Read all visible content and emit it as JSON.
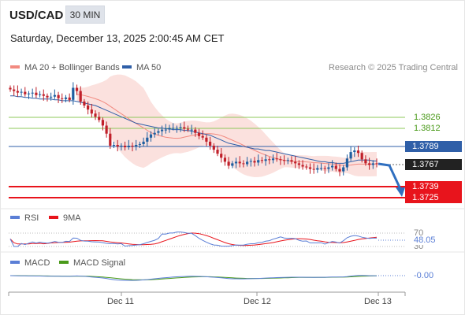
{
  "header": {
    "symbol": "USD/CAD",
    "timeframe": "30 MIN",
    "timestamp": "Saturday, December 13, 2025 2:00:45 AM CET"
  },
  "legend_main": [
    {
      "label": "MA 20 + Bollinger Bands",
      "color": "#f28a80"
    },
    {
      "label": "MA 50",
      "color": "#2f5fa8"
    }
  ],
  "copyright": "Research © 2025 Trading Central",
  "levels": {
    "r2": "1.3826",
    "r1": "1.3812",
    "pivot": "1.3789",
    "last": "1.3767",
    "s1": "1.3739",
    "s2": "1.3725"
  },
  "colors": {
    "resistance": "#8cc85a",
    "pivot": "#2f5fa8",
    "support": "#e8141c",
    "up_candle": "#1f5fa0",
    "down_candle": "#c0202a",
    "bollinger_fill": "#fbe1de",
    "arrow": "#2f6fc0"
  },
  "rsi": {
    "legend": [
      {
        "label": "RSI",
        "color": "#5b7fd6"
      },
      {
        "label": "9MA",
        "color": "#e8141c"
      }
    ],
    "levels": [
      "70",
      "30"
    ],
    "value": "48.05"
  },
  "macd": {
    "legend": [
      {
        "label": "MACD",
        "color": "#5b7fd6"
      },
      {
        "label": "MACD Signal",
        "color": "#4a9a1a"
      }
    ],
    "value": "-0.00"
  },
  "x_axis": [
    "Dec 11",
    "Dec 12",
    "Dec 13"
  ],
  "chart_data": {
    "type": "candlestick",
    "symbol": "USD/CAD",
    "timeframe": "30 MIN",
    "y_range_approx": [
      1.3715,
      1.387
    ],
    "close_series_approx": [
      1.386,
      1.3858,
      1.3856,
      1.3857,
      1.3854,
      1.3855,
      1.3856,
      1.3853,
      1.3854,
      1.3852,
      1.385,
      1.3851,
      1.3853,
      1.3849,
      1.3848,
      1.385,
      1.3847,
      1.3862,
      1.3858,
      1.3845,
      1.384,
      1.3835,
      1.383,
      1.3826,
      1.3822,
      1.3815,
      1.3805,
      1.379,
      1.3791,
      1.3789,
      1.379,
      1.3788,
      1.379,
      1.3789,
      1.3791,
      1.3792,
      1.3795,
      1.38,
      1.3804,
      1.3806,
      1.3808,
      1.381,
      1.381,
      1.3812,
      1.3812,
      1.3812,
      1.3813,
      1.3811,
      1.381,
      1.381,
      1.3806,
      1.3802,
      1.38,
      1.3795,
      1.379,
      1.3785,
      1.378,
      1.3775,
      1.377,
      1.3765,
      1.3768,
      1.377,
      1.3768,
      1.3767,
      1.377,
      1.3771,
      1.3769,
      1.3772,
      1.3771,
      1.3773,
      1.3772,
      1.3774,
      1.3773,
      1.3772,
      1.3771,
      1.3772,
      1.377,
      1.3768,
      1.3766,
      1.3764,
      1.3763,
      1.3761,
      1.376,
      1.3762,
      1.3762,
      1.3761,
      1.3763,
      1.3765,
      1.3761,
      1.3758,
      1.3763,
      1.3774,
      1.3782,
      1.3784,
      1.3781,
      1.3773,
      1.3768,
      1.3766,
      1.3768,
      1.3767
    ],
    "ma50_approx": [
      1.3852,
      1.3852,
      1.3851,
      1.3851,
      1.385,
      1.385,
      1.3849,
      1.3849,
      1.3848,
      1.3848,
      1.3848,
      1.3848,
      1.3847,
      1.3847,
      1.3846,
      1.3846,
      1.3846,
      1.3846,
      1.3845,
      1.3844,
      1.3843,
      1.3842,
      1.3841,
      1.384,
      1.3838,
      1.3836,
      1.3834,
      1.3832,
      1.383,
      1.3828,
      1.3826,
      1.3824,
      1.3822,
      1.382,
      1.3818,
      1.3817,
      1.3816,
      1.3815,
      1.3814,
      1.3813,
      1.3812,
      1.3812,
      1.3811,
      1.3811,
      1.381,
      1.381,
      1.381,
      1.3809,
      1.3809,
      1.3808,
      1.3807,
      1.3806,
      1.3805,
      1.3804,
      1.3803,
      1.3801,
      1.3799,
      1.3797,
      1.3795,
      1.3793,
      1.3792,
      1.3791,
      1.379,
      1.3789,
      1.3788,
      1.3787,
      1.3786,
      1.3786,
      1.3785,
      1.3784,
      1.3784,
      1.3783,
      1.3782,
      1.3781,
      1.378,
      1.3779,
      1.3778,
      1.3777,
      1.3776,
      1.3775,
      1.3774,
      1.3773,
      1.3772,
      1.3771,
      1.377,
      1.377,
      1.3769,
      1.3769,
      1.3768,
      1.3768,
      1.3768,
      1.3769,
      1.377,
      1.3771,
      1.3772,
      1.3772,
      1.3772,
      1.3772,
      1.3771,
      1.3771
    ]
  }
}
